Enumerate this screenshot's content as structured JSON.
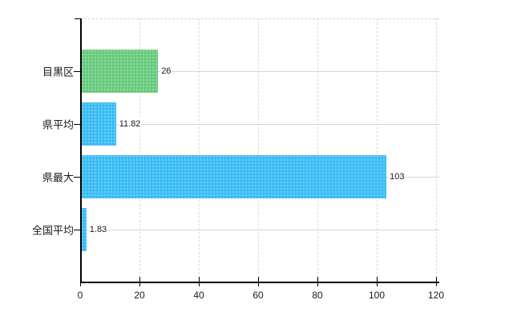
{
  "chart_data": {
    "type": "bar",
    "orientation": "horizontal",
    "title": "",
    "categories": [
      "目黒区",
      "県平均",
      "県最大",
      "全国平均"
    ],
    "values": [
      26,
      11.82,
      103,
      1.83
    ],
    "value_labels": [
      "26",
      "11.82",
      "103",
      "1.83"
    ],
    "bar_colors": [
      "#68cb7e",
      "#3abcf4",
      "#3abcf4",
      "#3abcf4"
    ],
    "xlabel": "",
    "ylabel": "",
    "xlim": [
      0,
      120
    ],
    "x_tick_values": [
      0,
      20,
      40,
      60,
      80,
      100,
      120
    ],
    "x_tick_labels": [
      "0",
      "20",
      "40",
      "60",
      "80",
      "100",
      "120"
    ],
    "grid": true,
    "legend": false,
    "colors": {
      "background": "#ffffff",
      "axis": "#000000",
      "grid_vertical": "#dcdcdc",
      "grid_horizontal": "#d3d8cd",
      "top_border": "#d8d2d2",
      "text": "#1a1a1a"
    }
  }
}
